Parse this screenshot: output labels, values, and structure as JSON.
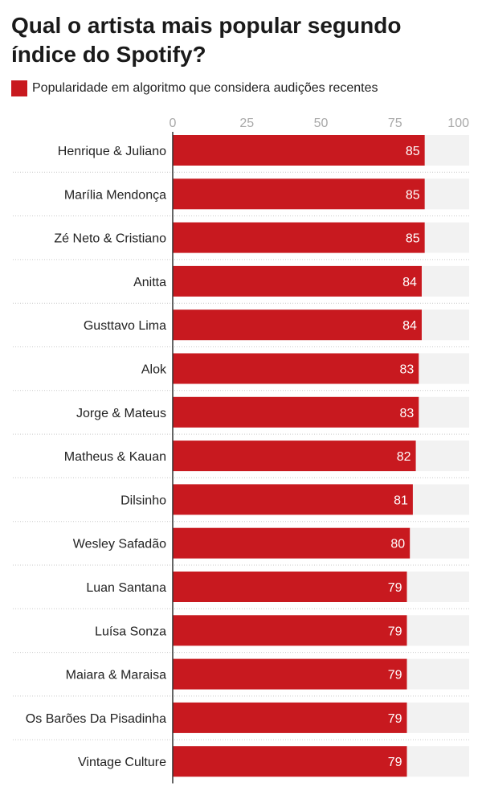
{
  "title": "Qual o artista mais popular segundo índice do Spotify?",
  "legend": {
    "label": "Popularidade em algoritmo que considera audições recentes",
    "color": "#c8191f"
  },
  "colors": {
    "bar": "#c8191f",
    "background_band": "#f2f2f2",
    "value_label": "#ffffff",
    "tick_label": "#a8a8a8",
    "axis_line": "#333333",
    "separator": "#c9c9c9"
  },
  "chart_data": {
    "type": "bar",
    "orientation": "horizontal",
    "title": "Qual o artista mais popular segundo índice do Spotify?",
    "xlabel": "",
    "ylabel": "",
    "xlim": [
      0,
      100
    ],
    "ticks": [
      0,
      25,
      50,
      75,
      100
    ],
    "tick_labels": [
      "0",
      "25",
      "50",
      "75",
      "100"
    ],
    "grid": false,
    "legend_position": "top-left",
    "categories": [
      "Henrique & Juliano",
      "Marília Mendonça",
      "Zé Neto & Cristiano",
      "Anitta",
      "Gusttavo Lima",
      "Alok",
      "Jorge & Mateus",
      "Matheus & Kauan",
      "Dilsinho",
      "Wesley Safadão",
      "Luan Santana",
      "Luísa Sonza",
      "Maiara & Maraisa",
      "Os Barões Da Pisadinha",
      "Vintage Culture"
    ],
    "series": [
      {
        "name": "Popularidade em algoritmo que considera audições recentes",
        "values": [
          85,
          85,
          85,
          84,
          84,
          83,
          83,
          82,
          81,
          80,
          79,
          79,
          79,
          79,
          79
        ]
      }
    ]
  }
}
